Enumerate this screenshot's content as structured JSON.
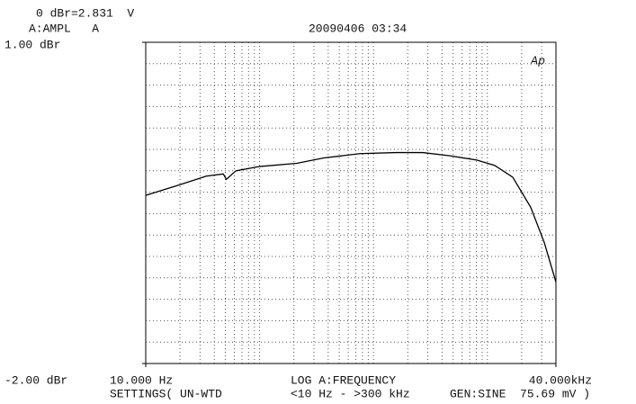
{
  "chart_data": {
    "type": "line",
    "header": [
      "0 dBr=2.831  V",
      "A:AMPL   A"
    ],
    "timestamp": "20090406 03:34",
    "logo": "Ap",
    "x_label": "LOG A:FREQUENCY",
    "footer": [
      "SETTINGS( UN-WTD",
      "<10 Hz - >300 kHz",
      "GEN:SINE  75.69 mV )"
    ],
    "x_log": true,
    "grid": true,
    "xlim": [
      10,
      40000
    ],
    "ylim": [
      -2,
      1
    ],
    "xticks": [
      {
        "value": 10,
        "label": "10.000 Hz"
      },
      {
        "value": 40000,
        "label": "40.000kHz"
      }
    ],
    "yticks": [
      {
        "value": 1,
        "label": "1.00 dBr"
      },
      {
        "value": -2,
        "label": "-2.00 dBr"
      }
    ],
    "series": [
      {
        "color": "#000000",
        "x": [
          10,
          20,
          34,
          48,
          51,
          62,
          100,
          212,
          367,
          759,
          1570,
          2710,
          4680,
          8070,
          11600,
          16700,
          24000,
          31600,
          40000
        ],
        "values": [
          -0.43,
          -0.33,
          -0.25,
          -0.23,
          -0.28,
          -0.2,
          -0.16,
          -0.13,
          -0.08,
          -0.04,
          -0.03,
          -0.03,
          -0.06,
          -0.1,
          -0.15,
          -0.26,
          -0.54,
          -0.87,
          -1.24
        ]
      }
    ]
  }
}
